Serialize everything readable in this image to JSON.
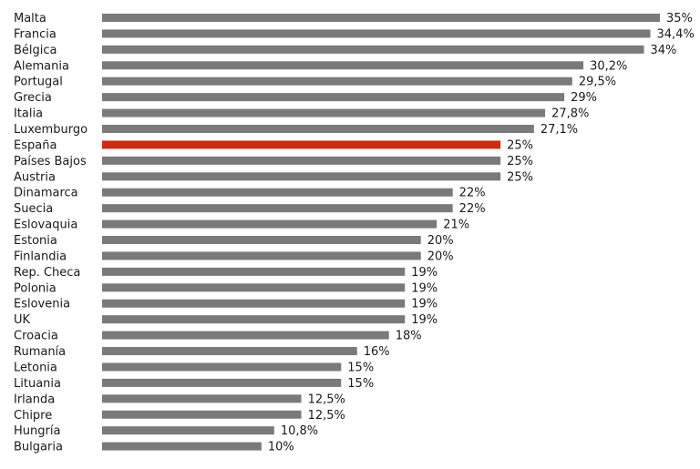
{
  "chart_data": {
    "type": "bar",
    "orientation": "horizontal",
    "title": "",
    "xlabel": "",
    "ylabel": "",
    "xlim": [
      0,
      35
    ],
    "grid": false,
    "legend": "none",
    "categories": [
      "Malta",
      "Francia",
      "Bélgica",
      "Alemania",
      "Portugal",
      "Grecia",
      "Italia",
      "Luxemburgo",
      "España",
      "Países Bajos",
      "Austria",
      "Dinamarca",
      "Suecia",
      "Eslovaquia",
      "Estonia",
      "Finlandia",
      "Rep. Checa",
      "Polonia",
      "Eslovenia",
      "UK",
      "Croacia",
      "Rumanía",
      "Letonia",
      "Lituania",
      "Irlanda",
      "Chipre",
      "Hungría",
      "Bulgaria"
    ],
    "values": [
      35,
      34.4,
      34,
      30.2,
      29.5,
      29,
      27.8,
      27.1,
      25,
      25,
      25,
      22,
      22,
      21,
      20,
      20,
      19,
      19,
      19,
      19,
      18,
      16,
      15,
      15,
      12.5,
      12.5,
      10.8,
      10
    ],
    "value_labels": [
      "35%",
      "34,4%",
      "34%",
      "30,2%",
      "29,5%",
      "29%",
      "27,8%",
      "27,1%",
      "25%",
      "25%",
      "25%",
      "22%",
      "22%",
      "21%",
      "20%",
      "20%",
      "19%",
      "19%",
      "19%",
      "19%",
      "18%",
      "16%",
      "15%",
      "15%",
      "12,5%",
      "12,5%",
      "10,8%",
      "10%"
    ],
    "highlight_category": "España",
    "colors": {
      "bar": "#7a7a7a",
      "highlight": "#cc2a12",
      "text": "#1a1a1a"
    }
  }
}
